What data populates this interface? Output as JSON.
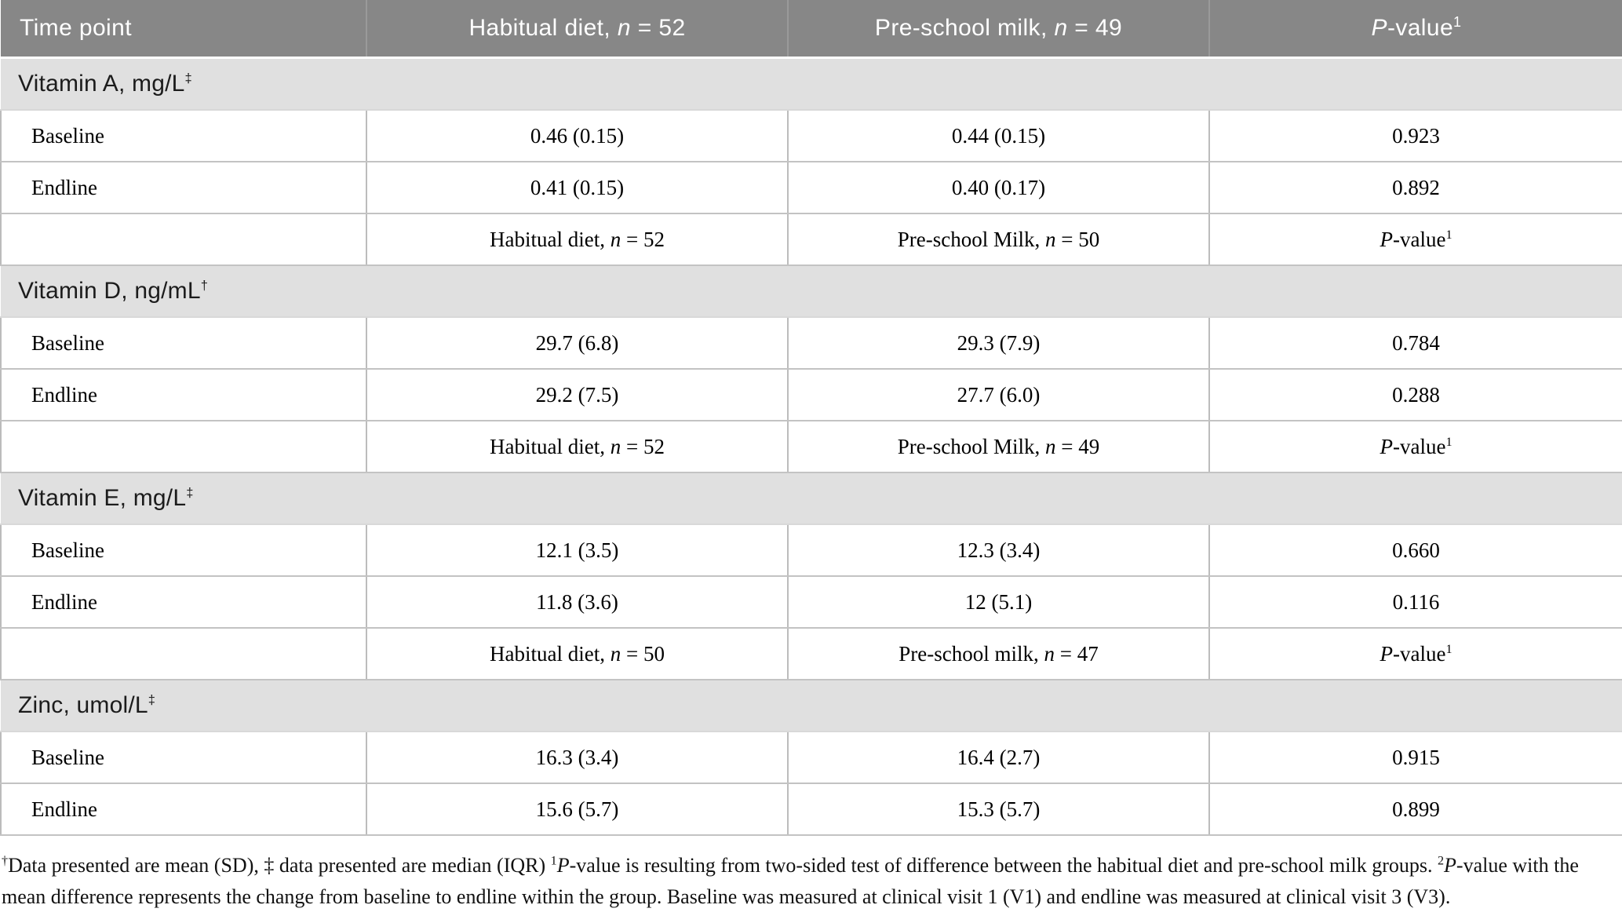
{
  "colors": {
    "header_bg": "#878787",
    "header_text": "#ffffff",
    "band_bg": "#e0e0e0",
    "border_gray": "#bcbcbc",
    "row_line": "#c3c3c3"
  },
  "header": {
    "time_point": "Time point",
    "habitual": {
      "pre": "Habitual diet, ",
      "n": "n",
      "post": " = 52"
    },
    "milk": {
      "pre": "Pre-school milk, ",
      "n": "n",
      "post": " = 49"
    },
    "pvalue": {
      "p": "P",
      "post": "-value",
      "sup": "1"
    }
  },
  "sections": [
    {
      "band": {
        "label": "Vitamin A, mg/L",
        "sup": "‡"
      },
      "baseline": {
        "label": "Baseline",
        "habitual": "0.46 (0.15)",
        "milk": "0.44 (0.15)",
        "pvalue": "0.923"
      },
      "endline": {
        "label": "Endline",
        "habitual": "0.41 (0.15)",
        "milk": "0.40 (0.17)",
        "pvalue": "0.892"
      },
      "subheader": {
        "habitual": {
          "pre": "Habitual diet, ",
          "n": "n",
          "post": " = 52"
        },
        "milk": {
          "pre": "Pre-school Milk, ",
          "n": "n",
          "post": " = 50"
        },
        "pvalue": {
          "p": "P",
          "post": "-value",
          "sup": "1"
        }
      }
    },
    {
      "band": {
        "label": "Vitamin D, ng/mL",
        "sup": "†"
      },
      "baseline": {
        "label": "Baseline",
        "habitual": "29.7 (6.8)",
        "milk": "29.3 (7.9)",
        "pvalue": "0.784"
      },
      "endline": {
        "label": "Endline",
        "habitual": "29.2 (7.5)",
        "milk": "27.7 (6.0)",
        "pvalue": "0.288"
      },
      "subheader": {
        "habitual": {
          "pre": "Habitual diet, ",
          "n": "n",
          "post": " = 52"
        },
        "milk": {
          "pre": "Pre-school Milk, ",
          "n": "n",
          "post": " = 49"
        },
        "pvalue": {
          "p": "P",
          "post": "-value",
          "sup": "1"
        }
      }
    },
    {
      "band": {
        "label": "Vitamin E, mg/L",
        "sup": "‡"
      },
      "baseline": {
        "label": "Baseline",
        "habitual": "12.1 (3.5)",
        "milk": "12.3 (3.4)",
        "pvalue": "0.660"
      },
      "endline": {
        "label": "Endline",
        "habitual": "11.8 (3.6)",
        "milk": "12 (5.1)",
        "pvalue": "0.116"
      },
      "subheader": {
        "habitual": {
          "pre": "Habitual diet, ",
          "n": "n",
          "post": " = 50"
        },
        "milk": {
          "pre": "Pre-school milk, ",
          "n": "n",
          "post": " = 47"
        },
        "pvalue": {
          "p": "P",
          "post": "-value",
          "sup": "1"
        }
      }
    },
    {
      "band": {
        "label": "Zinc, umol/L",
        "sup": "‡"
      },
      "baseline": {
        "label": "Baseline",
        "habitual": "16.3 (3.4)",
        "milk": "16.4 (2.7)",
        "pvalue": "0.915"
      },
      "endline": {
        "label": "Endline",
        "habitual": "15.6 (5.7)",
        "milk": "15.3 (5.7)",
        "pvalue": "0.899"
      }
    }
  ],
  "footnote": {
    "sup_dagger": "†",
    "t1": "Data presented are mean (SD), ‡ data presented are median (IQR) ",
    "sup1": "1",
    "p1": "P",
    "t2": "-value is resulting from two-sided test of difference between the habitual diet and pre-school milk groups. ",
    "sup2": "2",
    "p2": "P",
    "t3": "-value with the mean difference represents the change from baseline to endline within the group. Baseline was measured at clinical visit 1 (V1) and endline was measured at clinical visit 3 (V3)."
  }
}
